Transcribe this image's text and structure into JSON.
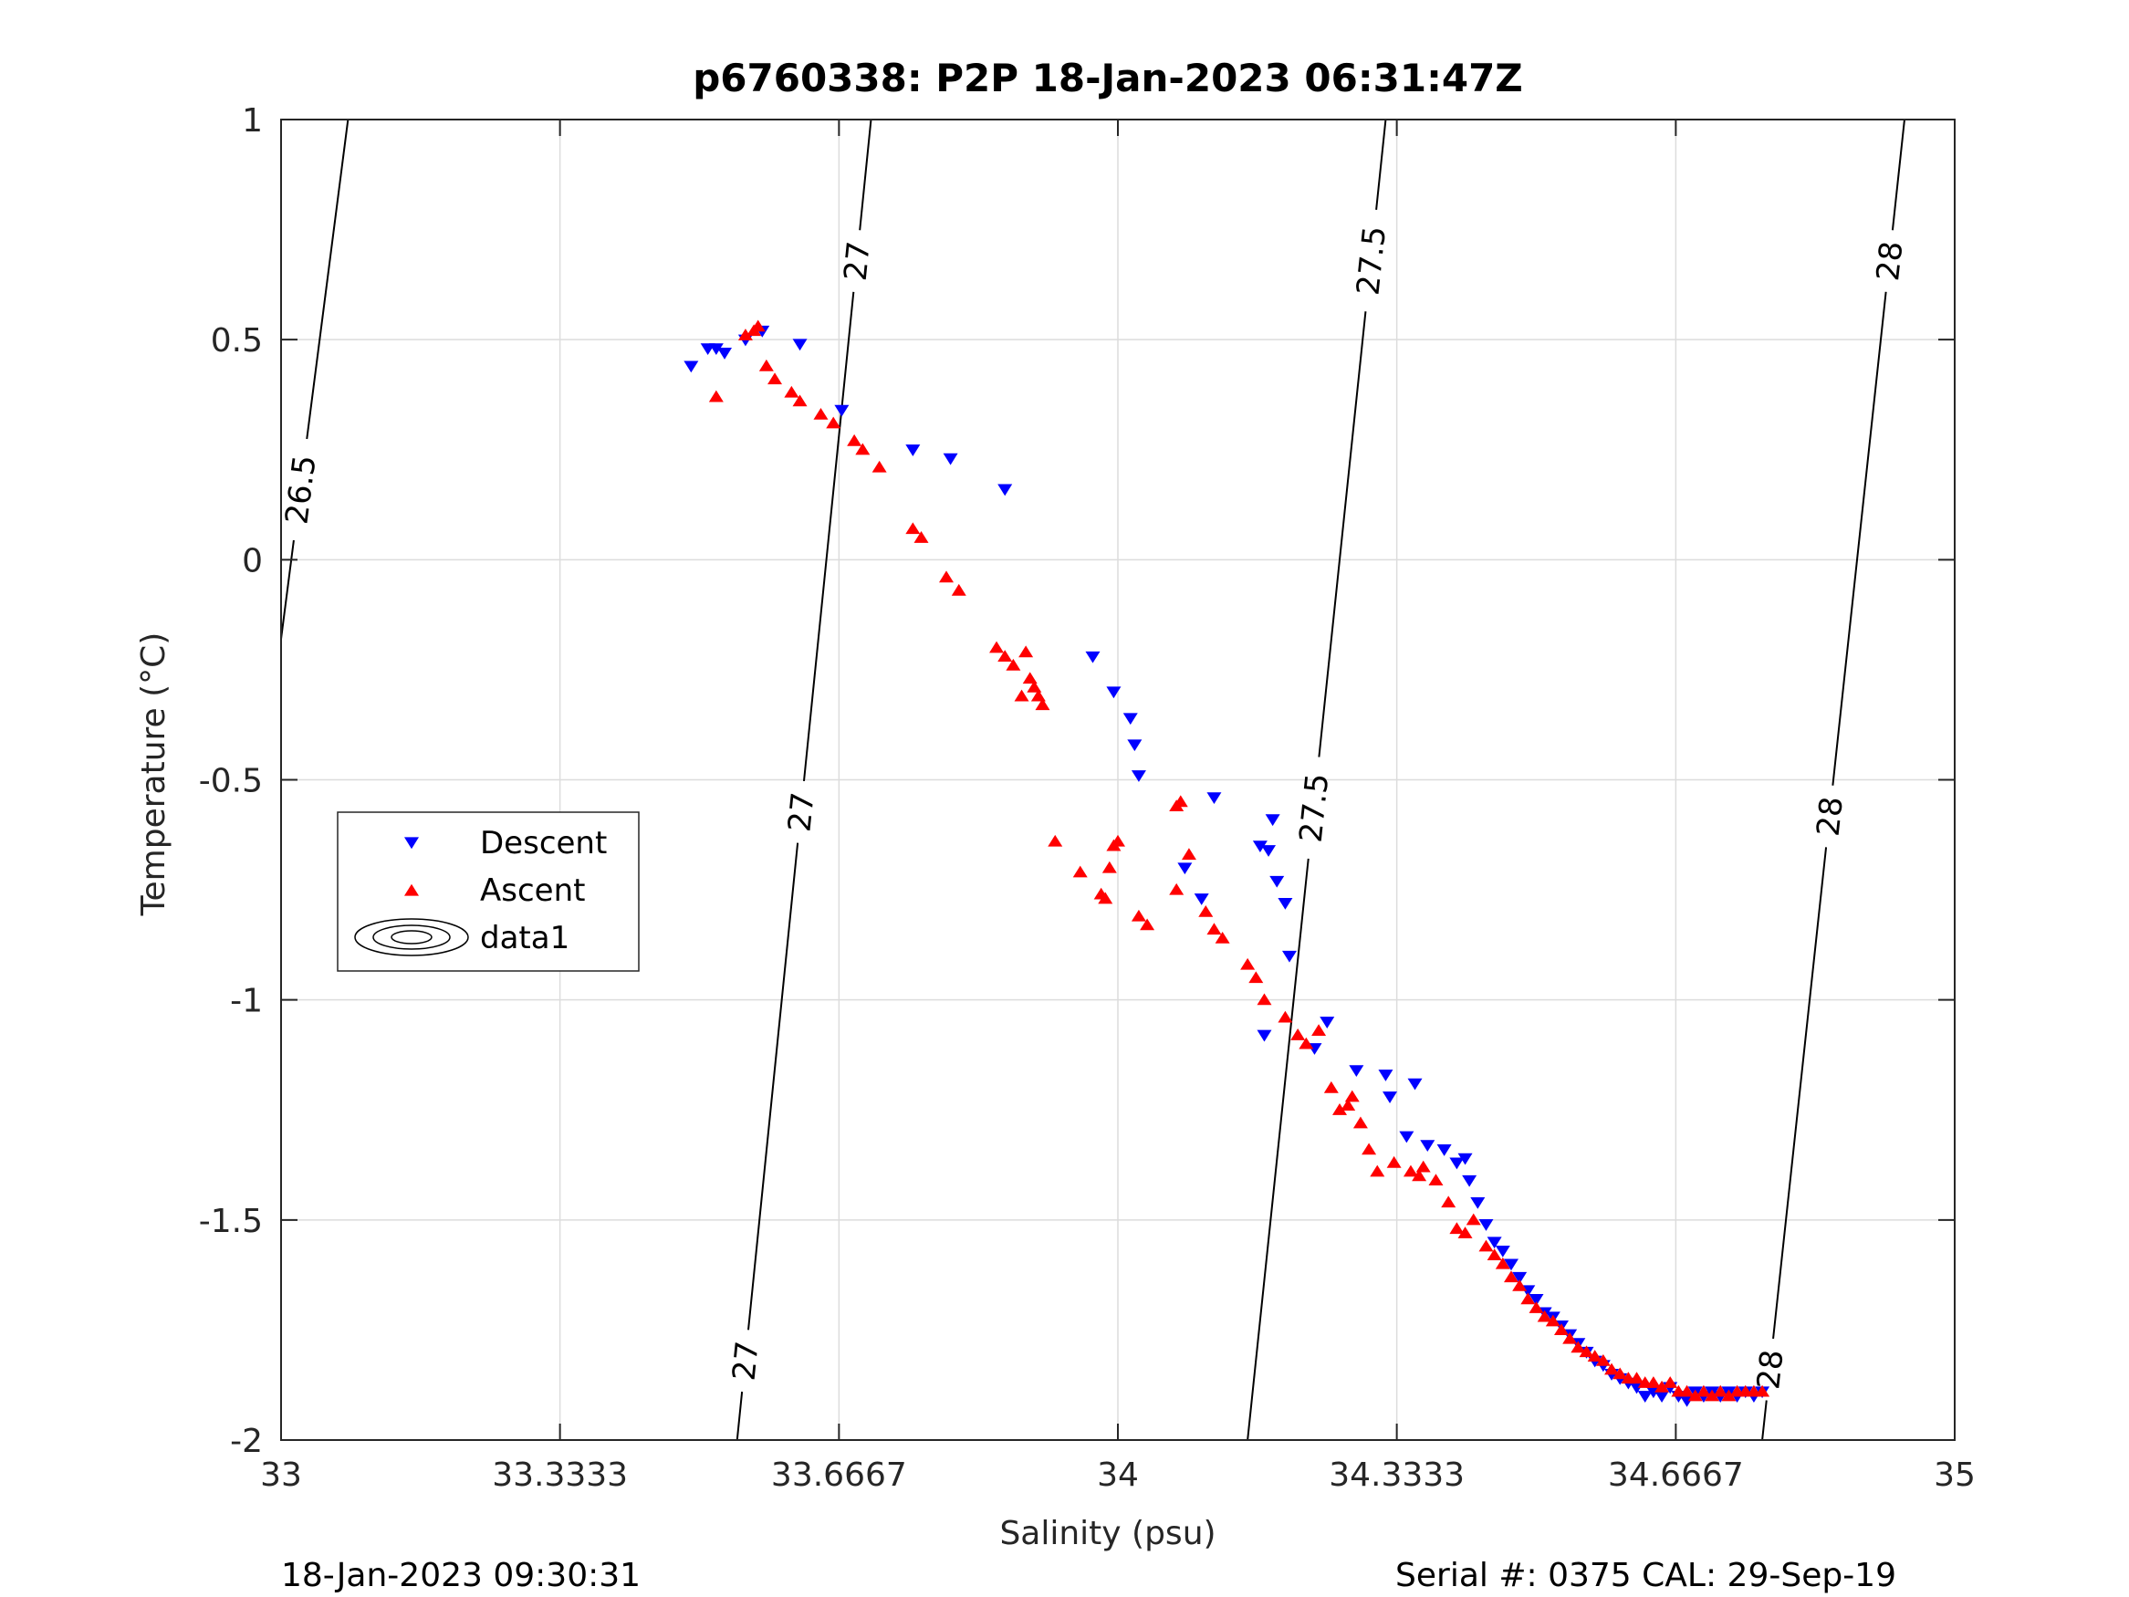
{
  "colors": {
    "descent": "#0000ff",
    "ascent": "#ff0000",
    "grid": "#dcdcdc",
    "axis": "#262626",
    "contour": "#000000",
    "text": "#262626"
  },
  "footer": {
    "left": "18-Jan-2023 09:30:31",
    "right": "Serial #: 0375  CAL: 29-Sep-19"
  },
  "chart_data": {
    "type": "scatter",
    "title": "p6760338: P2P 18-Jan-2023 06:31:47Z",
    "xlabel": "Salinity (psu)",
    "ylabel": "Temperature (°C)",
    "xlim": [
      33,
      35
    ],
    "ylim": [
      -2,
      1
    ],
    "x_ticks": [
      33,
      33.3333,
      33.6667,
      34,
      34.3333,
      34.6667,
      35
    ],
    "x_tick_labels": [
      "33",
      "33.3333",
      "33.6667",
      "34",
      "34.3333",
      "34.6667",
      "35"
    ],
    "y_ticks": [
      -2,
      -1.5,
      -1,
      -0.5,
      0,
      0.5,
      1
    ],
    "y_tick_labels": [
      "-2",
      "-1.5",
      "-1",
      "-0.5",
      "0",
      "0.5",
      "1"
    ],
    "grid": true,
    "legend_placement": "left-middle",
    "legend": [
      "Descent",
      "Ascent",
      "data1"
    ],
    "series": [
      {
        "name": "Descent",
        "marker": "triangle-down",
        "points": [
          [
            33.49,
            0.44
          ],
          [
            33.51,
            0.48
          ],
          [
            33.52,
            0.48
          ],
          [
            33.53,
            0.47
          ],
          [
            33.555,
            0.5
          ],
          [
            33.575,
            0.52
          ],
          [
            33.62,
            0.49
          ],
          [
            33.67,
            0.34
          ],
          [
            33.755,
            0.25
          ],
          [
            33.8,
            0.23
          ],
          [
            33.865,
            0.16
          ],
          [
            33.97,
            -0.22
          ],
          [
            33.995,
            -0.3
          ],
          [
            34.015,
            -0.36
          ],
          [
            34.02,
            -0.42
          ],
          [
            34.025,
            -0.49
          ],
          [
            34.08,
            -0.7
          ],
          [
            34.1,
            -0.77
          ],
          [
            34.115,
            -0.54
          ],
          [
            34.17,
            -0.65
          ],
          [
            34.18,
            -0.66
          ],
          [
            34.185,
            -0.59
          ],
          [
            34.19,
            -0.73
          ],
          [
            34.2,
            -0.78
          ],
          [
            34.205,
            -0.9
          ],
          [
            34.175,
            -1.08
          ],
          [
            34.235,
            -1.11
          ],
          [
            34.25,
            -1.05
          ],
          [
            34.285,
            -1.16
          ],
          [
            34.32,
            -1.17
          ],
          [
            34.325,
            -1.22
          ],
          [
            34.345,
            -1.31
          ],
          [
            34.355,
            -1.19
          ],
          [
            34.37,
            -1.33
          ],
          [
            34.39,
            -1.34
          ],
          [
            34.405,
            -1.37
          ],
          [
            34.415,
            -1.36
          ],
          [
            34.42,
            -1.41
          ],
          [
            34.43,
            -1.46
          ],
          [
            34.44,
            -1.51
          ],
          [
            34.45,
            -1.55
          ],
          [
            34.46,
            -1.57
          ],
          [
            34.47,
            -1.6
          ],
          [
            34.48,
            -1.63
          ],
          [
            34.49,
            -1.66
          ],
          [
            34.5,
            -1.68
          ],
          [
            34.51,
            -1.71
          ],
          [
            34.52,
            -1.72
          ],
          [
            34.53,
            -1.74
          ],
          [
            34.54,
            -1.76
          ],
          [
            34.55,
            -1.78
          ],
          [
            34.56,
            -1.8
          ],
          [
            34.57,
            -1.82
          ],
          [
            34.58,
            -1.83
          ],
          [
            34.59,
            -1.85
          ],
          [
            34.6,
            -1.86
          ],
          [
            34.61,
            -1.87
          ],
          [
            34.62,
            -1.88
          ],
          [
            34.63,
            -1.9
          ],
          [
            34.64,
            -1.89
          ],
          [
            34.65,
            -1.9
          ],
          [
            34.66,
            -1.88
          ],
          [
            34.67,
            -1.9
          ],
          [
            34.68,
            -1.91
          ],
          [
            34.69,
            -1.89
          ],
          [
            34.7,
            -1.9
          ],
          [
            34.71,
            -1.89
          ],
          [
            34.72,
            -1.9
          ],
          [
            34.73,
            -1.89
          ],
          [
            34.74,
            -1.9
          ],
          [
            34.75,
            -1.89
          ],
          [
            34.76,
            -1.9
          ],
          [
            34.77,
            -1.89
          ]
        ]
      },
      {
        "name": "Ascent",
        "marker": "triangle-up",
        "points": [
          [
            33.52,
            0.37
          ],
          [
            33.555,
            0.51
          ],
          [
            33.565,
            0.52
          ],
          [
            33.57,
            0.53
          ],
          [
            33.58,
            0.44
          ],
          [
            33.59,
            0.41
          ],
          [
            33.61,
            0.38
          ],
          [
            33.62,
            0.36
          ],
          [
            33.645,
            0.33
          ],
          [
            33.66,
            0.31
          ],
          [
            33.685,
            0.27
          ],
          [
            33.695,
            0.25
          ],
          [
            33.715,
            0.21
          ],
          [
            33.755,
            0.07
          ],
          [
            33.765,
            0.05
          ],
          [
            33.795,
            -0.04
          ],
          [
            33.81,
            -0.07
          ],
          [
            33.855,
            -0.2
          ],
          [
            33.865,
            -0.22
          ],
          [
            33.875,
            -0.24
          ],
          [
            33.885,
            -0.31
          ],
          [
            33.89,
            -0.21
          ],
          [
            33.895,
            -0.27
          ],
          [
            33.9,
            -0.29
          ],
          [
            33.905,
            -0.31
          ],
          [
            33.91,
            -0.33
          ],
          [
            33.925,
            -0.64
          ],
          [
            33.955,
            -0.71
          ],
          [
            33.98,
            -0.76
          ],
          [
            33.985,
            -0.77
          ],
          [
            33.99,
            -0.7
          ],
          [
            33.995,
            -0.65
          ],
          [
            34.0,
            -0.64
          ],
          [
            34.025,
            -0.81
          ],
          [
            34.035,
            -0.83
          ],
          [
            34.07,
            -0.56
          ],
          [
            34.075,
            -0.55
          ],
          [
            34.085,
            -0.67
          ],
          [
            34.07,
            -0.75
          ],
          [
            34.105,
            -0.8
          ],
          [
            34.115,
            -0.84
          ],
          [
            34.125,
            -0.86
          ],
          [
            34.155,
            -0.92
          ],
          [
            34.165,
            -0.95
          ],
          [
            34.175,
            -1.0
          ],
          [
            34.2,
            -1.04
          ],
          [
            34.215,
            -1.08
          ],
          [
            34.225,
            -1.1
          ],
          [
            34.24,
            -1.07
          ],
          [
            34.255,
            -1.2
          ],
          [
            34.265,
            -1.25
          ],
          [
            34.275,
            -1.24
          ],
          [
            34.28,
            -1.22
          ],
          [
            34.29,
            -1.28
          ],
          [
            34.3,
            -1.34
          ],
          [
            34.31,
            -1.39
          ],
          [
            34.33,
            -1.37
          ],
          [
            34.35,
            -1.39
          ],
          [
            34.36,
            -1.4
          ],
          [
            34.365,
            -1.38
          ],
          [
            34.38,
            -1.41
          ],
          [
            34.395,
            -1.46
          ],
          [
            34.405,
            -1.52
          ],
          [
            34.415,
            -1.53
          ],
          [
            34.425,
            -1.5
          ],
          [
            34.44,
            -1.56
          ],
          [
            34.45,
            -1.58
          ],
          [
            34.46,
            -1.6
          ],
          [
            34.47,
            -1.63
          ],
          [
            34.48,
            -1.65
          ],
          [
            34.49,
            -1.68
          ],
          [
            34.5,
            -1.7
          ],
          [
            34.51,
            -1.72
          ],
          [
            34.52,
            -1.73
          ],
          [
            34.53,
            -1.75
          ],
          [
            34.54,
            -1.77
          ],
          [
            34.55,
            -1.79
          ],
          [
            34.56,
            -1.8
          ],
          [
            34.57,
            -1.81
          ],
          [
            34.58,
            -1.82
          ],
          [
            34.59,
            -1.84
          ],
          [
            34.6,
            -1.85
          ],
          [
            34.61,
            -1.86
          ],
          [
            34.62,
            -1.86
          ],
          [
            34.63,
            -1.87
          ],
          [
            34.64,
            -1.87
          ],
          [
            34.65,
            -1.88
          ],
          [
            34.66,
            -1.87
          ],
          [
            34.67,
            -1.89
          ],
          [
            34.68,
            -1.89
          ],
          [
            34.69,
            -1.9
          ],
          [
            34.7,
            -1.89
          ],
          [
            34.71,
            -1.9
          ],
          [
            34.72,
            -1.89
          ],
          [
            34.73,
            -1.9
          ],
          [
            34.74,
            -1.89
          ],
          [
            34.75,
            -1.89
          ],
          [
            34.76,
            -1.89
          ],
          [
            34.77,
            -1.89
          ]
        ]
      },
      {
        "name": "data1",
        "type": "contour",
        "lines": [
          {
            "level": "26.5",
            "points": [
              [
                33.0,
                -0.18
              ],
              [
                33.08,
                1.0
              ]
            ],
            "labels": [
              {
                "text": "26.5",
                "at": [
                  33.02,
                  0.16
                ]
              }
            ]
          },
          {
            "level": "27",
            "points": [
              [
                33.545,
                -2.0
              ],
              [
                33.705,
                1.0
              ]
            ],
            "labels": [
              {
                "text": "27",
                "at": [
                  33.68,
                  0.68
                ]
              },
              {
                "text": "27",
                "at": [
                  33.605,
                  -0.57
                ]
              },
              {
                "text": "27",
                "at": [
                  33.555,
                  -1.82
                ]
              }
            ]
          },
          {
            "level": "27.5",
            "points": [
              [
                34.155,
                -2.0
              ],
              [
                34.32,
                1.0
              ]
            ],
            "labels": [
              {
                "text": "27.5",
                "at": [
                  34.3,
                  0.68
                ]
              },
              {
                "text": "27.5",
                "at": [
                  34.215,
                  -0.56
                ]
              }
            ]
          },
          {
            "level": "28",
            "points": [
              [
                34.77,
                -2.0
              ],
              [
                34.94,
                1.0
              ]
            ],
            "labels": [
              {
                "text": "28",
                "at": [
                  34.915,
                  0.68
                ]
              },
              {
                "text": "28",
                "at": [
                  34.835,
                  -0.58
                ]
              },
              {
                "text": "28",
                "at": [
                  34.78,
                  -1.84
                ]
              }
            ]
          }
        ]
      }
    ]
  }
}
